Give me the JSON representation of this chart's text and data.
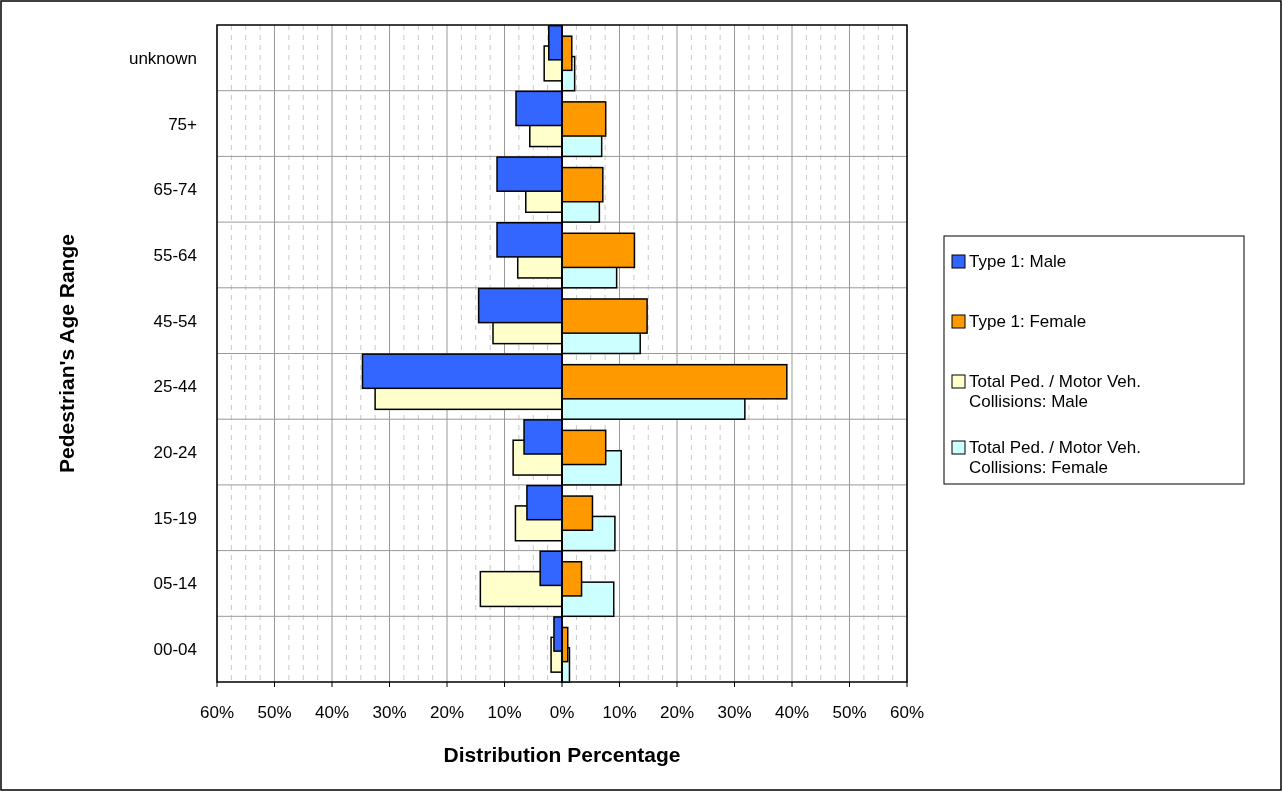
{
  "chart_data": {
    "type": "bar",
    "orientation": "horizontal",
    "xlabel": "Distribution Percentage",
    "ylabel": "Pedestrian's Age Range",
    "categories": [
      "unknown",
      "75+",
      "65-74",
      "55-64",
      "45-54",
      "25-44",
      "20-24",
      "15-19",
      "05-14",
      "00-04"
    ],
    "series": [
      {
        "name": "Type 1: Male",
        "color": "#3366ff",
        "values": [
          -2.3,
          -8.0,
          -11.3,
          -11.3,
          -14.5,
          -34.7,
          -6.6,
          -6.1,
          -3.8,
          -1.4
        ]
      },
      {
        "name": "Type 1: Female",
        "color": "#ff9900",
        "values": [
          1.7,
          7.6,
          7.1,
          12.6,
          14.8,
          39.1,
          7.6,
          5.3,
          3.4,
          1.0
        ]
      },
      {
        "name": "Total Ped. / Motor Veh. Collisions: Male",
        "color": "#ffffcc",
        "values": [
          -3.1,
          -5.6,
          -6.3,
          -7.7,
          -12.0,
          -32.5,
          -8.5,
          -8.1,
          -14.2,
          -1.9
        ]
      },
      {
        "name": "Total Ped. / Motor Veh. Collisions: Female",
        "color": "#ccffff",
        "values": [
          2.2,
          6.9,
          6.5,
          9.5,
          13.6,
          31.8,
          10.3,
          9.2,
          9.0,
          1.3
        ]
      }
    ],
    "xlim": [
      -60,
      60
    ],
    "xticks": [
      {
        "value": -60,
        "label": "60%"
      },
      {
        "value": -57.5,
        "label": null
      },
      {
        "value": -55,
        "label": null
      },
      {
        "value": -52.5,
        "label": null
      },
      {
        "value": -50,
        "label": "50%"
      },
      {
        "value": -47.5,
        "label": null
      },
      {
        "value": -45,
        "label": null
      },
      {
        "value": -42.5,
        "label": null
      },
      {
        "value": -40,
        "label": "40%"
      },
      {
        "value": -37.5,
        "label": null
      },
      {
        "value": -35,
        "label": null
      },
      {
        "value": -32.5,
        "label": null
      },
      {
        "value": -30,
        "label": "30%"
      },
      {
        "value": -27.5,
        "label": null
      },
      {
        "value": -25,
        "label": null
      },
      {
        "value": -22.5,
        "label": null
      },
      {
        "value": -20,
        "label": "20%"
      },
      {
        "value": -17.5,
        "label": null
      },
      {
        "value": -15,
        "label": null
      },
      {
        "value": -12.5,
        "label": null
      },
      {
        "value": -10,
        "label": "10%"
      },
      {
        "value": -7.5,
        "label": null
      },
      {
        "value": -5,
        "label": null
      },
      {
        "value": -2.5,
        "label": null
      },
      {
        "value": 0,
        "label": "0%"
      },
      {
        "value": 2.5,
        "label": null
      },
      {
        "value": 5,
        "label": null
      },
      {
        "value": 7.5,
        "label": null
      },
      {
        "value": 10,
        "label": "10%"
      },
      {
        "value": 12.5,
        "label": null
      },
      {
        "value": 15,
        "label": null
      },
      {
        "value": 17.5,
        "label": null
      },
      {
        "value": 20,
        "label": "20%"
      },
      {
        "value": 22.5,
        "label": null
      },
      {
        "value": 25,
        "label": null
      },
      {
        "value": 27.5,
        "label": null
      },
      {
        "value": 30,
        "label": "30%"
      },
      {
        "value": 32.5,
        "label": null
      },
      {
        "value": 35,
        "label": null
      },
      {
        "value": 37.5,
        "label": null
      },
      {
        "value": 40,
        "label": "40%"
      },
      {
        "value": 42.5,
        "label": null
      },
      {
        "value": 45,
        "label": null
      },
      {
        "value": 47.5,
        "label": null
      },
      {
        "value": 50,
        "label": "50%"
      },
      {
        "value": 52.5,
        "label": null
      },
      {
        "value": 55,
        "label": null
      },
      {
        "value": 57.5,
        "label": null
      },
      {
        "value": 60,
        "label": "60%"
      }
    ],
    "grid": true,
    "legend": "right"
  }
}
